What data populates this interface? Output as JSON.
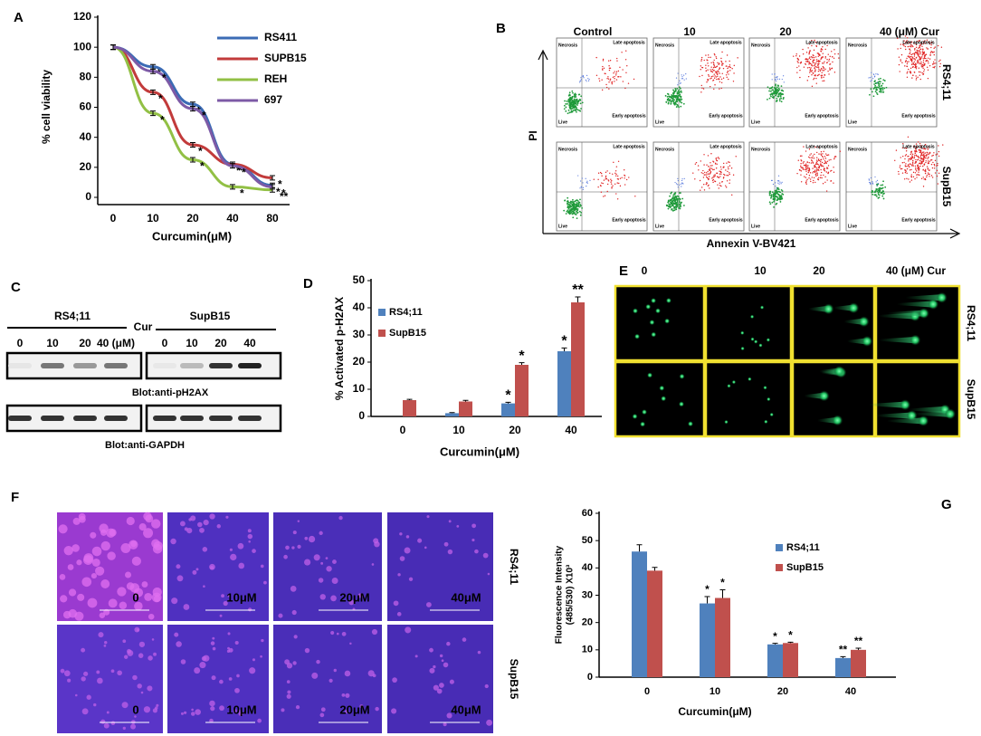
{
  "chart_data": [
    {
      "type": "line",
      "panel_label": "A",
      "categories": [
        "0",
        "10",
        "20",
        "40",
        "80"
      ],
      "ylabel": "% cell viability",
      "xlabel": "Curcumin(μM)",
      "ylim": [
        0,
        120
      ],
      "yticks": [
        0,
        20,
        40,
        60,
        80,
        100,
        120
      ],
      "series": [
        {
          "name": "RS411",
          "color": "#3b6bb5",
          "values": [
            100,
            87,
            62,
            22,
            8
          ],
          "errors": [
            1.5,
            1.5,
            1.5,
            1.5,
            1.5
          ],
          "significance": [
            null,
            "*",
            "*",
            "*",
            "*"
          ]
        },
        {
          "name": "SUPB15",
          "color": "#c23b3b",
          "values": [
            100,
            70,
            35,
            22,
            13
          ],
          "errors": [
            1.5,
            1.5,
            1.5,
            1.5,
            1.5
          ],
          "significance": [
            null,
            "*",
            "*",
            "*",
            "*"
          ]
        },
        {
          "name": "REH",
          "color": "#92c045",
          "values": [
            100,
            56,
            25,
            7,
            5
          ],
          "errors": [
            1.5,
            1.5,
            1.5,
            1.5,
            1.5
          ],
          "significance": [
            null,
            "*",
            "*",
            "*",
            "**"
          ]
        },
        {
          "name": "697",
          "color": "#7d5aa6",
          "values": [
            100,
            84,
            59,
            21,
            7
          ],
          "errors": [
            1.5,
            1.5,
            1.5,
            1.5,
            1.5
          ],
          "significance": [
            null,
            "*",
            "*",
            "*",
            "*"
          ]
        }
      ]
    },
    {
      "type": "bar",
      "panel_label": "D",
      "categories": [
        "0",
        "10",
        "20",
        "40"
      ],
      "ylabel": "% Activated  p-H2AX",
      "xlabel": "Curcumin(μM)",
      "ylim": [
        0,
        50
      ],
      "yticks": [
        0,
        10,
        20,
        30,
        40,
        50
      ],
      "series": [
        {
          "name": "RS4;11",
          "color": "#4f81bd",
          "values": [
            null,
            1.2,
            4.8,
            24
          ],
          "errors": [
            null,
            0.2,
            0.4,
            1.2
          ],
          "significance": [
            null,
            null,
            "*",
            "*"
          ]
        },
        {
          "name": "SupB15",
          "color": "#c0504d",
          "values": [
            6,
            5.5,
            19,
            42
          ],
          "errors": [
            0.3,
            0.4,
            0.8,
            2
          ],
          "significance": [
            null,
            null,
            "*",
            "**"
          ]
        }
      ]
    },
    {
      "type": "bar",
      "panel_label": "G",
      "categories": [
        "0",
        "10",
        "20",
        "40"
      ],
      "ylabel": [
        "Fluorescence Intensity",
        "(485/530) X10³"
      ],
      "xlabel": "Curcumin(μM)",
      "ylim": [
        0,
        60
      ],
      "yticks": [
        0,
        10,
        20,
        30,
        40,
        50,
        60
      ],
      "series": [
        {
          "name": "RS4;11",
          "color": "#4f81bd",
          "values": [
            46,
            27,
            12,
            7
          ],
          "errors": [
            2.5,
            2.5,
            0.4,
            0.5
          ],
          "significance": [
            null,
            "*",
            "*",
            "**"
          ]
        },
        {
          "name": "SupB15",
          "color": "#c0504d",
          "values": [
            39,
            29,
            12.5,
            10
          ],
          "errors": [
            1.2,
            3,
            0.3,
            0.6
          ],
          "significance": [
            null,
            "*",
            "*",
            "**"
          ]
        }
      ]
    }
  ],
  "flow_cytometry": {
    "panel_label": "B",
    "columns": [
      "Control",
      "10",
      "20",
      "40 (μM) Cur"
    ],
    "rows": [
      "RS4;11",
      "SupB15"
    ],
    "y_axis": "PI",
    "x_axis": "Annexin V-BV421",
    "quadrants": [
      "Necrosis",
      "Late apoptosis",
      "Live",
      "Early apoptosis"
    ]
  },
  "western_blot": {
    "panel_label": "C",
    "groups": [
      "RS4;11",
      "SupB15"
    ],
    "treatment": "Cur",
    "lanes_1": [
      "0",
      "10",
      "20",
      "40 (μM)"
    ],
    "lanes_2": [
      "0",
      "10",
      "20",
      "40"
    ],
    "blots": [
      "Blot:anti-pH2AX",
      "Blot:anti-GAPDH"
    ]
  },
  "comet_assay": {
    "panel_label": "E",
    "columns": [
      "0",
      "10",
      "20",
      "40 (μM) Cur"
    ],
    "rows": [
      "RS4;11",
      "SupB15"
    ]
  },
  "microscopy": {
    "panel_label": "F",
    "rows": [
      "RS4;11",
      "SupB15"
    ],
    "image_labels": [
      "0",
      "10μM",
      "20μM",
      "40μM"
    ]
  }
}
